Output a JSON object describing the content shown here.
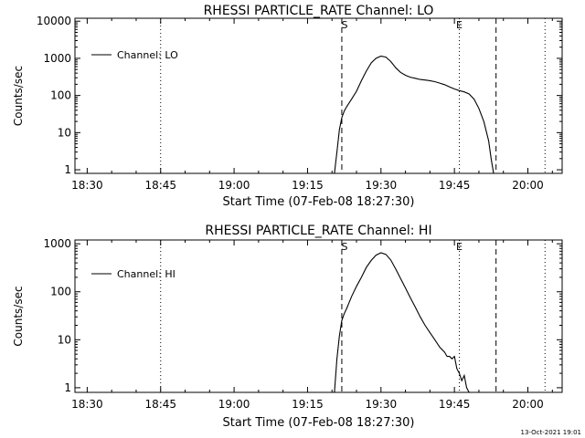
{
  "chart_data": [
    {
      "type": "line",
      "title": "RHESSI PARTICLE_RATE Channel: LO",
      "xlabel": "Start Time (07-Feb-08 18:27:30)",
      "ylabel": "Counts/sec",
      "yscale": "log",
      "xlim": [
        "18:27:30",
        "20:07:00"
      ],
      "ylim": [
        0.8,
        12000
      ],
      "x_ticks": [
        "18:30",
        "18:45",
        "19:00",
        "19:15",
        "19:30",
        "19:45",
        "20:00"
      ],
      "y_ticks": [
        "1",
        "10",
        "100",
        "1000",
        "10000"
      ],
      "legend": {
        "label": "Channel: LO",
        "placement": "top-left"
      },
      "markers": [
        {
          "label": "",
          "time": "18:27:30",
          "style": "dotted"
        },
        {
          "label": "",
          "time": "18:45:00",
          "style": "dotted"
        },
        {
          "label": "S",
          "time": "19:22:00",
          "style": "dashed"
        },
        {
          "label": "E",
          "time": "19:46:00",
          "style": "dotted"
        },
        {
          "label": "",
          "time": "19:53:30",
          "style": "dashed"
        },
        {
          "label": "",
          "time": "20:03:30",
          "style": "dotted"
        }
      ],
      "series": [
        {
          "name": "Channel: LO",
          "points": [
            [
              "19:20:30",
              0.8
            ],
            [
              "19:21:00",
              3
            ],
            [
              "19:21:30",
              12
            ],
            [
              "19:22:00",
              25
            ],
            [
              "19:22:30",
              38
            ],
            [
              "19:23:00",
              50
            ],
            [
              "19:24:00",
              80
            ],
            [
              "19:25:00",
              130
            ],
            [
              "19:26:00",
              250
            ],
            [
              "19:27:00",
              450
            ],
            [
              "19:28:00",
              750
            ],
            [
              "19:29:00",
              1000
            ],
            [
              "19:30:00",
              1150
            ],
            [
              "19:31:00",
              1080
            ],
            [
              "19:32:00",
              820
            ],
            [
              "19:33:00",
              560
            ],
            [
              "19:34:00",
              420
            ],
            [
              "19:35:00",
              350
            ],
            [
              "19:36:00",
              310
            ],
            [
              "19:37:00",
              290
            ],
            [
              "19:38:00",
              270
            ],
            [
              "19:39:00",
              260
            ],
            [
              "19:40:00",
              250
            ],
            [
              "19:41:00",
              235
            ],
            [
              "19:42:00",
              215
            ],
            [
              "19:43:00",
              195
            ],
            [
              "19:44:00",
              170
            ],
            [
              "19:45:00",
              150
            ],
            [
              "19:46:00",
              135
            ],
            [
              "19:47:00",
              125
            ],
            [
              "19:48:00",
              110
            ],
            [
              "19:49:00",
              80
            ],
            [
              "19:50:00",
              45
            ],
            [
              "19:51:00",
              20
            ],
            [
              "19:52:00",
              6
            ],
            [
              "19:52:30",
              2
            ],
            [
              "19:53:00",
              0.8
            ]
          ]
        }
      ]
    },
    {
      "type": "line",
      "title": "RHESSI PARTICLE_RATE Channel: HI",
      "xlabel": "Start Time (07-Feb-08 18:27:30)",
      "ylabel": "Counts/sec",
      "yscale": "log",
      "xlim": [
        "18:27:30",
        "20:07:00"
      ],
      "ylim": [
        0.8,
        1200
      ],
      "x_ticks": [
        "18:30",
        "18:45",
        "19:00",
        "19:15",
        "19:30",
        "19:45",
        "20:00"
      ],
      "y_ticks": [
        "1",
        "10",
        "100",
        "1000"
      ],
      "legend": {
        "label": "Channel: HI",
        "placement": "top-left"
      },
      "markers": [
        {
          "label": "",
          "time": "18:27:30",
          "style": "dotted"
        },
        {
          "label": "",
          "time": "18:45:00",
          "style": "dotted"
        },
        {
          "label": "S",
          "time": "19:22:00",
          "style": "dashed"
        },
        {
          "label": "E",
          "time": "19:46:00",
          "style": "dotted"
        },
        {
          "label": "",
          "time": "19:53:30",
          "style": "dashed"
        },
        {
          "label": "",
          "time": "20:03:30",
          "style": "dotted"
        }
      ],
      "series": [
        {
          "name": "Channel: HI",
          "points": [
            [
              "19:20:30",
              0.8
            ],
            [
              "19:21:00",
              4
            ],
            [
              "19:21:30",
              12
            ],
            [
              "19:22:00",
              25
            ],
            [
              "19:22:30",
              35
            ],
            [
              "19:23:00",
              45
            ],
            [
              "19:24:00",
              80
            ],
            [
              "19:25:00",
              130
            ],
            [
              "19:26:00",
              200
            ],
            [
              "19:27:00",
              320
            ],
            [
              "19:28:00",
              450
            ],
            [
              "19:29:00",
              580
            ],
            [
              "19:30:00",
              650
            ],
            [
              "19:31:00",
              600
            ],
            [
              "19:32:00",
              460
            ],
            [
              "19:33:00",
              300
            ],
            [
              "19:34:00",
              190
            ],
            [
              "19:35:00",
              120
            ],
            [
              "19:36:00",
              75
            ],
            [
              "19:37:00",
              48
            ],
            [
              "19:38:00",
              30
            ],
            [
              "19:39:00",
              20
            ],
            [
              "19:40:00",
              14
            ],
            [
              "19:41:00",
              10
            ],
            [
              "19:42:00",
              7
            ],
            [
              "19:43:00",
              5.5
            ],
            [
              "19:43:30",
              4.5
            ],
            [
              "19:44:00",
              4.5
            ],
            [
              "19:44:30",
              4
            ],
            [
              "19:45:00",
              4.5
            ],
            [
              "19:45:30",
              2.5
            ],
            [
              "19:46:00",
              2
            ],
            [
              "19:46:30",
              1.4
            ],
            [
              "19:47:00",
              1.8
            ],
            [
              "19:47:30",
              1
            ],
            [
              "19:48:00",
              0.8
            ]
          ]
        }
      ]
    }
  ],
  "footer": {
    "timestamp": "13-Oct-2021 19:01"
  }
}
